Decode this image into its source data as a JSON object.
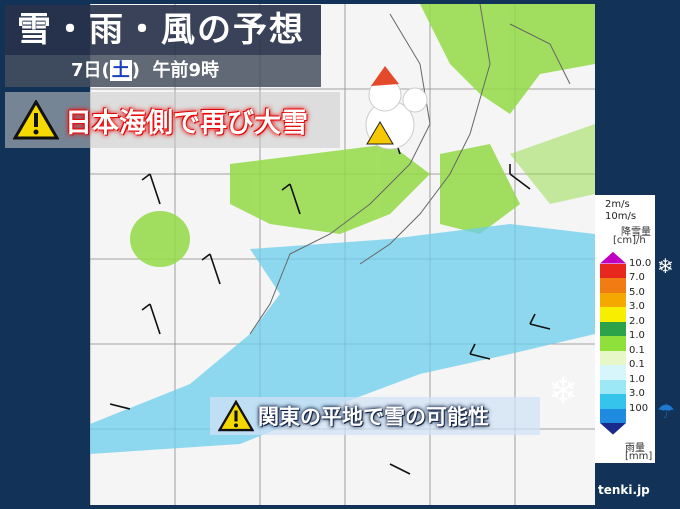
{
  "header": {
    "title": "雪・雨・風の予想",
    "date_prefix": "7日",
    "weekday": "土",
    "time": "午前9時"
  },
  "headline": {
    "text": "日本海側で再び大雪",
    "icon": "warning-icon"
  },
  "subheadline": {
    "text": "関東の平地で雪の可能性",
    "icon": "warning-icon"
  },
  "legend": {
    "wind_small": "2m/s",
    "wind_large": "10m/s",
    "snow_unit_label": "降雪量",
    "snow_unit": "[cm]/h",
    "rain_unit_label": "雨量",
    "rain_unit": "[mm]",
    "labels": [
      "10.0",
      "7.0",
      "5.0",
      "3.0",
      "2.0",
      "1.0",
      "0.1",
      "0.1",
      "1.0",
      "3.0",
      "100"
    ],
    "colors": [
      "#c000c0",
      "#e8281e",
      "#f27c14",
      "#f5a800",
      "#f7ee00",
      "#2ca348",
      "#8fe03a",
      "#e8f7c8",
      "#d6f6fb",
      "#9de8f6",
      "#35c4ec",
      "#1e8ae0",
      "#1a2a8c"
    ]
  },
  "logo": "tenki.jp",
  "colors": {
    "frame": "#123357",
    "snow": "#8fd93a",
    "rain": "#5cc8ee"
  }
}
